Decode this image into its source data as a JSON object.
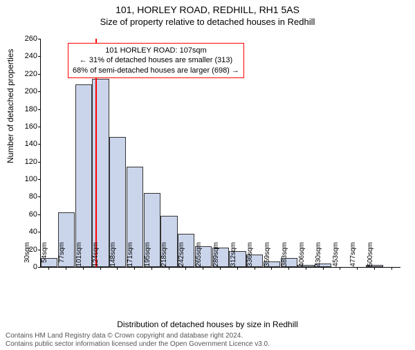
{
  "title": "101, HORLEY ROAD, REDHILL, RH1 5AS",
  "subtitle": "Size of property relative to detached houses in Redhill",
  "y_axis_label": "Number of detached properties",
  "x_axis_label": "Distribution of detached houses by size in Redhill",
  "footer_line1": "Contains HM Land Registry data © Crown copyright and database right 2024.",
  "footer_line2": "Contains public sector information licensed under the Open Government Licence v3.0.",
  "chart": {
    "type": "histogram",
    "bar_fill": "#cad4ea",
    "bar_border": "#333333",
    "marker_color": "#ff0000",
    "background": "#ffffff",
    "ylim": [
      0,
      260
    ],
    "ytick_step": 20,
    "x_categories": [
      "30sqm",
      "54sqm",
      "77sqm",
      "101sqm",
      "124sqm",
      "148sqm",
      "171sqm",
      "195sqm",
      "218sqm",
      "242sqm",
      "265sqm",
      "289sqm",
      "312sqm",
      "336sqm",
      "359sqm",
      "383sqm",
      "406sqm",
      "430sqm",
      "453sqm",
      "477sqm",
      "500sqm"
    ],
    "values": [
      10,
      62,
      208,
      214,
      148,
      114,
      84,
      58,
      38,
      24,
      22,
      18,
      14,
      6,
      10,
      2,
      4,
      0,
      0,
      2,
      0
    ],
    "marker_index": 3,
    "annotation": {
      "line1": "101 HORLEY ROAD: 107sqm",
      "line2": "← 31% of detached houses are smaller (313)",
      "line3": "68% of semi-detached houses are larger (698) →",
      "border_color": "#ff0000"
    },
    "title_fontsize": 14,
    "label_fontsize": 12,
    "tick_fontsize": 11
  }
}
